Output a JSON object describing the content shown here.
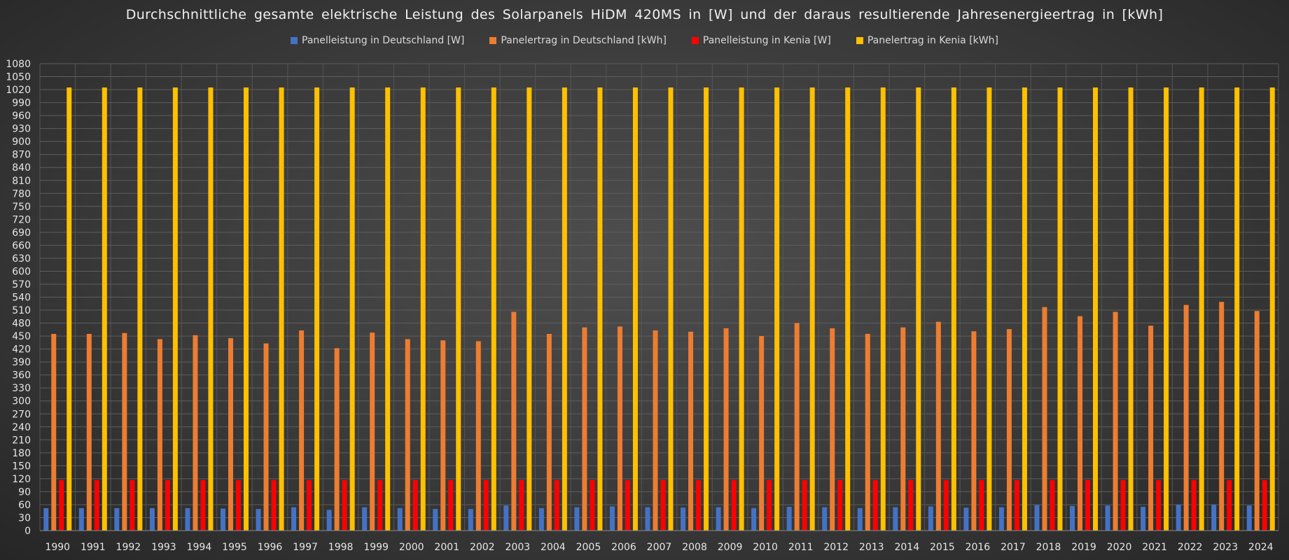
{
  "chart_data": {
    "type": "bar",
    "title": "Durchschnittliche gesamte elektrische Leistung des Solarpanels HiDM 420MS in [W] und der daraus resultierende Jahresenergieertrag in [kWh]",
    "xlabel": "",
    "ylabel": "",
    "ylim": [
      0,
      1080
    ],
    "yticks": [
      0,
      30,
      60,
      90,
      120,
      150,
      180,
      210,
      240,
      270,
      300,
      330,
      360,
      390,
      420,
      450,
      480,
      510,
      540,
      570,
      600,
      630,
      660,
      690,
      720,
      750,
      780,
      810,
      840,
      870,
      900,
      930,
      960,
      990,
      1020,
      1050,
      1080
    ],
    "grid": true,
    "legend_position": "top",
    "categories": [
      "1990",
      "1991",
      "1992",
      "1993",
      "1994",
      "1995",
      "1996",
      "1997",
      "1998",
      "1999",
      "2000",
      "2001",
      "2002",
      "2003",
      "2004",
      "2005",
      "2006",
      "2007",
      "2008",
      "2009",
      "2010",
      "2011",
      "2012",
      "2013",
      "2014",
      "2015",
      "2016",
      "2017",
      "2018",
      "2019",
      "2020",
      "2021",
      "2022",
      "2023",
      "2024"
    ],
    "series": [
      {
        "name": "Panelleistung in Deutschland [W]",
        "color": "#4472c4",
        "values": [
          52,
          52,
          52,
          52,
          52,
          51,
          50,
          54,
          48,
          54,
          52,
          50,
          50,
          58,
          52,
          54,
          56,
          54,
          53,
          54,
          52,
          55,
          54,
          52,
          54,
          56,
          53,
          54,
          59,
          57,
          58,
          55,
          60,
          60,
          58
        ]
      },
      {
        "name": "Panelertrag in Deutschland [kWh]",
        "color": "#ed7d31",
        "values": [
          455,
          455,
          457,
          443,
          452,
          445,
          433,
          463,
          422,
          458,
          443,
          440,
          438,
          506,
          455,
          470,
          472,
          463,
          460,
          468,
          450,
          480,
          468,
          455,
          470,
          483,
          461,
          466,
          517,
          496,
          506,
          474,
          522,
          529,
          508
        ]
      },
      {
        "name": "Panelleistung in Kenia [W]",
        "color": "#ff0000",
        "values": [
          117,
          117,
          117,
          117,
          117,
          117,
          117,
          117,
          117,
          117,
          117,
          117,
          117,
          117,
          117,
          117,
          117,
          117,
          117,
          117,
          117,
          117,
          117,
          117,
          117,
          117,
          117,
          117,
          117,
          117,
          117,
          117,
          117,
          117,
          117
        ]
      },
      {
        "name": "Panelertrag in Kenia [kWh]",
        "color": "#ffc000",
        "values": [
          1025,
          1025,
          1025,
          1025,
          1025,
          1025,
          1025,
          1025,
          1025,
          1025,
          1025,
          1025,
          1025,
          1025,
          1025,
          1025,
          1025,
          1025,
          1025,
          1025,
          1025,
          1025,
          1025,
          1025,
          1025,
          1025,
          1025,
          1025,
          1025,
          1025,
          1025,
          1025,
          1025,
          1025,
          1025
        ]
      }
    ]
  }
}
